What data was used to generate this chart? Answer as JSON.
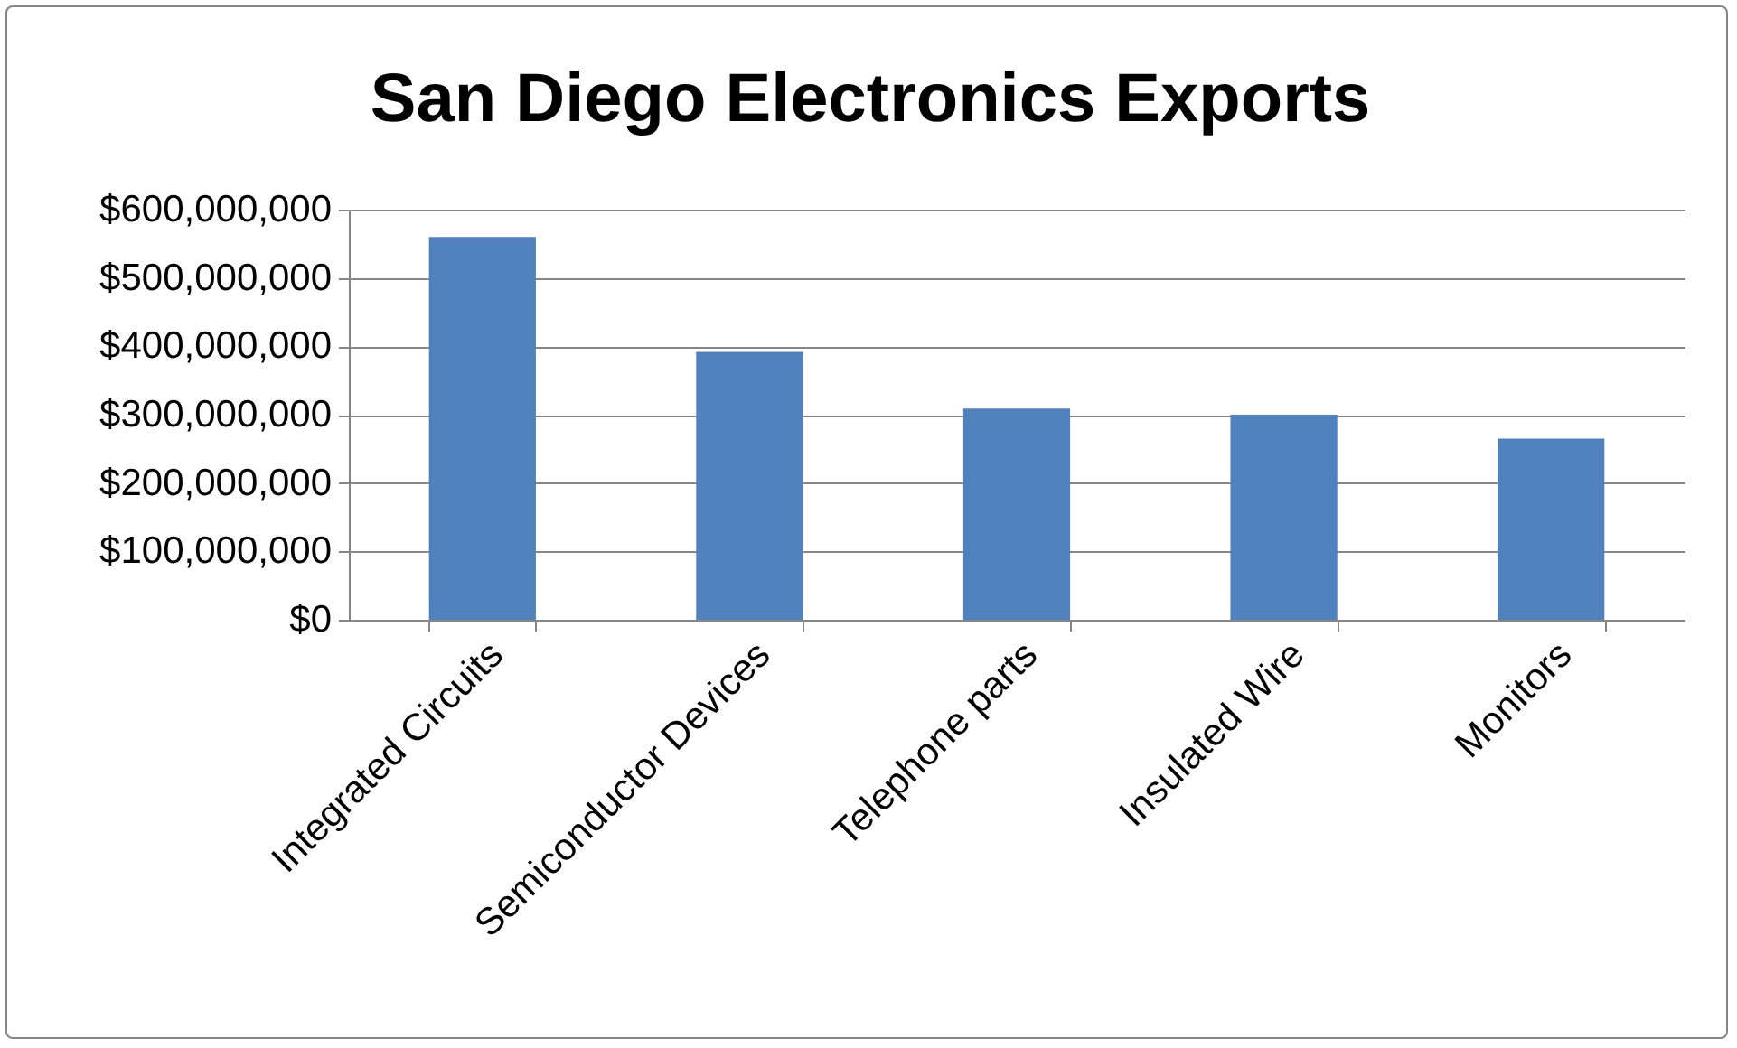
{
  "chart_data": {
    "type": "bar",
    "title": "San Diego Electronics Exports",
    "categories": [
      "Integrated Circuits",
      "Semiconductor Devices",
      "Telephone parts",
      "Insulated Wire",
      "Monitors"
    ],
    "values": [
      560000000,
      392000000,
      309000000,
      300000000,
      265000000
    ],
    "color": "#4f81bd",
    "ylim": [
      0,
      600000000
    ],
    "yticks": [
      {
        "value": 0,
        "label": "$0"
      },
      {
        "value": 100000000,
        "label": "$100,000,000"
      },
      {
        "value": 200000000,
        "label": "$200,000,000"
      },
      {
        "value": 300000000,
        "label": "$300,000,000"
      },
      {
        "value": 400000000,
        "label": "$400,000,000"
      },
      {
        "value": 500000000,
        "label": "$500,000,000"
      },
      {
        "value": 600000000,
        "label": "$600,000,000"
      }
    ],
    "grid": "y"
  }
}
